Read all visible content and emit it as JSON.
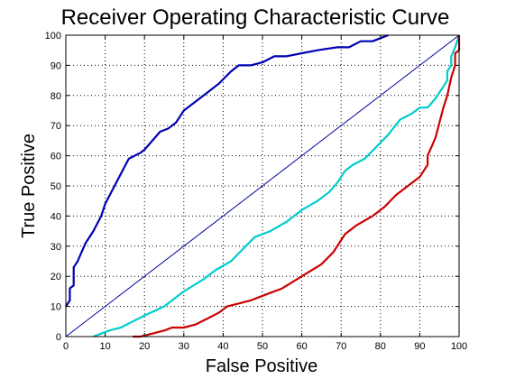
{
  "chart_data": {
    "type": "line",
    "title": "Receiver Operating Characteristic Curve",
    "xlabel": "False Positive",
    "ylabel": "True Positive",
    "xlim": [
      0,
      100
    ],
    "ylim": [
      0,
      100
    ],
    "xticks": [
      0,
      10,
      20,
      30,
      40,
      50,
      60,
      70,
      80,
      90,
      100
    ],
    "yticks": [
      0,
      10,
      20,
      30,
      40,
      50,
      60,
      70,
      80,
      90,
      100
    ],
    "grid": true,
    "series": [
      {
        "color": "#0000b3",
        "points": [
          [
            0,
            10
          ],
          [
            1,
            12
          ],
          [
            1,
            16
          ],
          [
            2,
            17
          ],
          [
            2,
            23
          ],
          [
            3,
            25
          ],
          [
            4,
            28
          ],
          [
            5,
            31
          ],
          [
            7,
            35
          ],
          [
            9,
            40
          ],
          [
            10,
            44
          ],
          [
            12,
            49
          ],
          [
            14,
            54
          ],
          [
            16,
            59
          ],
          [
            19,
            61
          ],
          [
            20,
            62
          ],
          [
            22,
            65
          ],
          [
            24,
            68
          ],
          [
            26,
            69
          ],
          [
            28,
            71
          ],
          [
            30,
            75
          ],
          [
            33,
            78
          ],
          [
            36,
            81
          ],
          [
            39,
            84
          ],
          [
            42,
            88
          ],
          [
            44,
            90
          ],
          [
            47,
            90
          ],
          [
            50,
            91
          ],
          [
            53,
            93
          ],
          [
            56,
            93
          ],
          [
            60,
            94
          ],
          [
            64,
            95
          ],
          [
            69,
            96
          ],
          [
            72,
            96
          ],
          [
            75,
            98
          ],
          [
            78,
            98
          ],
          [
            80,
            99
          ],
          [
            82,
            100
          ]
        ]
      },
      {
        "color": "#00cccc",
        "points": [
          [
            7,
            0
          ],
          [
            9,
            1
          ],
          [
            11,
            2
          ],
          [
            14,
            3
          ],
          [
            17,
            5
          ],
          [
            20,
            7
          ],
          [
            25,
            10
          ],
          [
            30,
            15
          ],
          [
            35,
            19
          ],
          [
            38,
            22
          ],
          [
            42,
            25
          ],
          [
            45,
            29
          ],
          [
            48,
            33
          ],
          [
            52,
            35
          ],
          [
            56,
            38
          ],
          [
            60,
            42
          ],
          [
            64,
            45
          ],
          [
            67,
            48
          ],
          [
            69,
            51
          ],
          [
            71,
            55
          ],
          [
            73,
            57
          ],
          [
            76,
            59
          ],
          [
            79,
            63
          ],
          [
            82,
            67
          ],
          [
            85,
            72
          ],
          [
            88,
            74
          ],
          [
            90,
            76
          ],
          [
            92,
            76
          ],
          [
            94,
            79
          ],
          [
            95,
            81
          ],
          [
            96,
            83
          ],
          [
            97,
            85
          ],
          [
            97,
            88
          ],
          [
            98,
            90
          ],
          [
            98,
            93
          ],
          [
            99,
            96
          ],
          [
            100,
            100
          ]
        ]
      },
      {
        "color": "#cc0000",
        "points": [
          [
            17,
            0
          ],
          [
            19,
            0
          ],
          [
            22,
            1
          ],
          [
            25,
            2
          ],
          [
            27,
            3
          ],
          [
            30,
            3
          ],
          [
            33,
            4
          ],
          [
            36,
            6
          ],
          [
            39,
            8
          ],
          [
            41,
            10
          ],
          [
            44,
            11
          ],
          [
            47,
            12
          ],
          [
            51,
            14
          ],
          [
            55,
            16
          ],
          [
            60,
            20
          ],
          [
            65,
            24
          ],
          [
            68,
            28
          ],
          [
            71,
            34
          ],
          [
            74,
            37
          ],
          [
            78,
            40
          ],
          [
            81,
            43
          ],
          [
            84,
            47
          ],
          [
            87,
            50
          ],
          [
            90,
            53
          ],
          [
            91,
            55
          ],
          [
            92,
            57
          ],
          [
            92,
            60
          ],
          [
            93,
            63
          ],
          [
            94,
            66
          ],
          [
            95,
            71
          ],
          [
            96,
            76
          ],
          [
            97,
            80
          ],
          [
            98,
            86
          ],
          [
            99,
            90
          ],
          [
            99,
            94
          ],
          [
            100,
            95
          ],
          [
            100,
            100
          ]
        ]
      },
      {
        "color": "#0000a0",
        "points": [
          [
            0,
            0
          ],
          [
            100,
            100
          ]
        ]
      }
    ]
  }
}
